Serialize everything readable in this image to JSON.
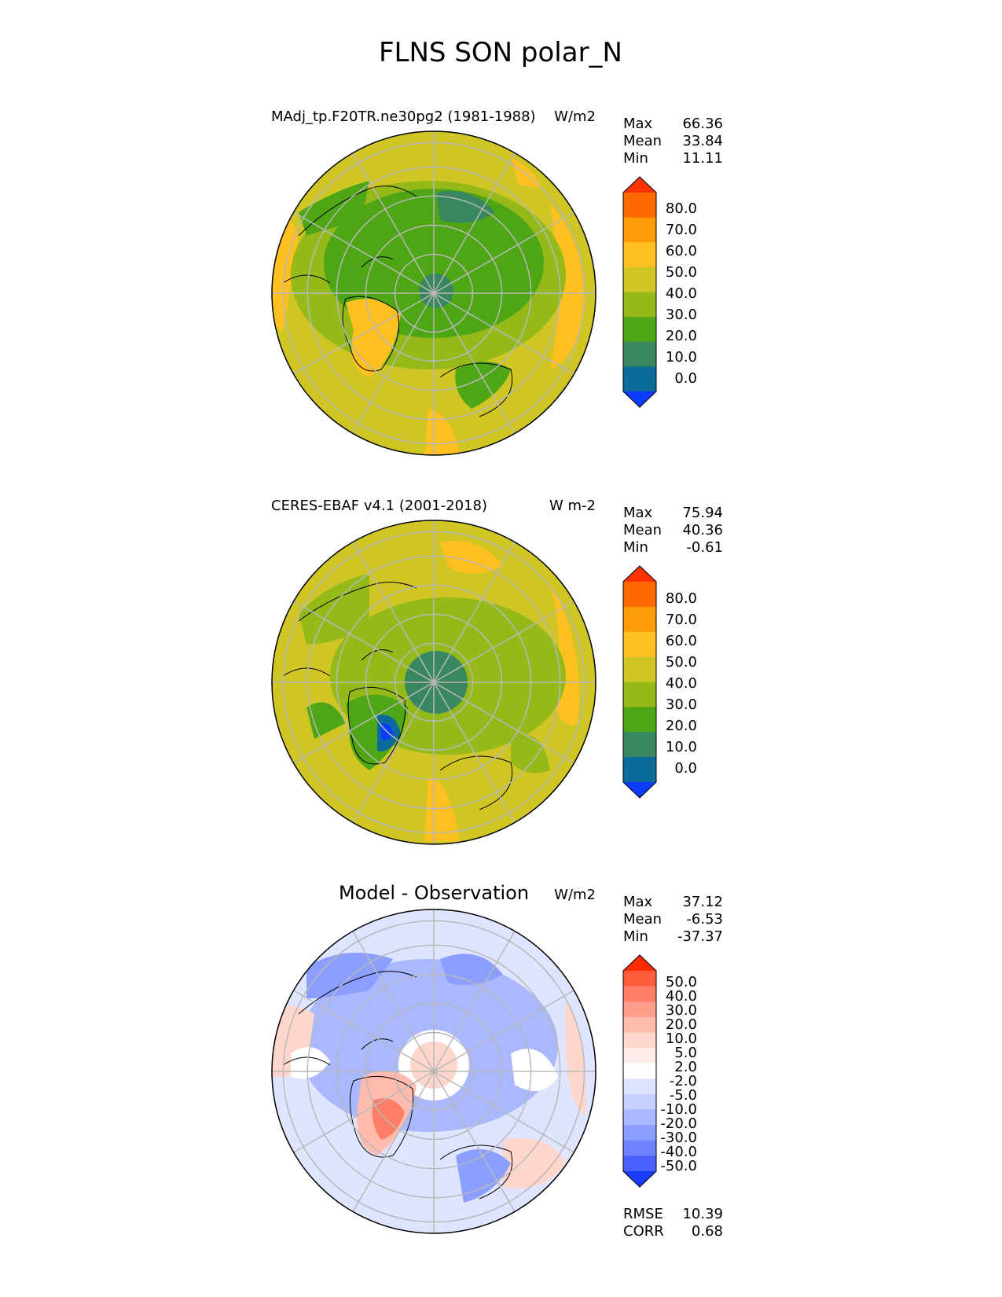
{
  "figure": {
    "title": "FLNS SON polar_N"
  },
  "panels": [
    {
      "id": "model",
      "label": "MAdj_tp.F20TR.ne30pg2 (1981-1988)",
      "units": "W/m2",
      "stats": [
        {
          "name": "Max",
          "value": "66.36"
        },
        {
          "name": "Mean",
          "value": "33.84"
        },
        {
          "name": "Min",
          "value": "11.11"
        }
      ]
    },
    {
      "id": "obs",
      "label": "CERES-EBAF v4.1 (2001-2018)",
      "units": "W m-2",
      "stats": [
        {
          "name": "Max",
          "value": "75.94"
        },
        {
          "name": "Mean",
          "value": "40.36"
        },
        {
          "name": "Min",
          "value": "-0.61"
        }
      ]
    },
    {
      "id": "diff",
      "label": "Model - Observation",
      "units": "W/m2",
      "stats": [
        {
          "name": "Max",
          "value": "37.12"
        },
        {
          "name": "Mean",
          "value": "-6.53"
        },
        {
          "name": "Min",
          "value": "-37.37"
        }
      ],
      "metrics": [
        {
          "name": "RMSE",
          "value": "10.39"
        },
        {
          "name": "CORR",
          "value": "0.68"
        }
      ]
    }
  ],
  "colorbars": {
    "absolute": {
      "labels": [
        "80.0",
        "70.0",
        "60.0",
        "50.0",
        "40.0",
        "30.0",
        "20.0",
        "10.0",
        "0.0"
      ],
      "colors": [
        "#ff3300",
        "#ff6a00",
        "#ff9a0a",
        "#ffc020",
        "#cfc626",
        "#96b91a",
        "#4ea615",
        "#398760",
        "#0b6b9c",
        "#0a3cff"
      ]
    },
    "difference": {
      "labels": [
        "50.0",
        "40.0",
        "30.0",
        "20.0",
        "10.0",
        "5.0",
        "2.0",
        "-2.0",
        "-5.0",
        "-10.0",
        "-20.0",
        "-30.0",
        "-40.0",
        "-50.0"
      ],
      "colors": [
        "#ff2a00",
        "#ff5c3c",
        "#ff7e68",
        "#ff9e8c",
        "#ffbcae",
        "#ffd6cc",
        "#ffecea",
        "#ffffff",
        "#dfe5ff",
        "#c5d0ff",
        "#aab8ff",
        "#8c9eff",
        "#6f82ff",
        "#4b60ff",
        "#1a3cff"
      ]
    }
  },
  "chart_data": [
    {
      "type": "heatmap",
      "projection": "north polar stereographic",
      "title": "MAdj_tp.F20TR.ne30pg2 (1981-1988)",
      "units": "W/m2",
      "levels": [
        0,
        10,
        20,
        30,
        40,
        50,
        60,
        70,
        80
      ],
      "extend": "both",
      "stats": {
        "max": 66.36,
        "mean": 33.84,
        "min": 11.11
      }
    },
    {
      "type": "heatmap",
      "projection": "north polar stereographic",
      "title": "CERES-EBAF v4.1 (2001-2018)",
      "units": "W m-2",
      "levels": [
        0,
        10,
        20,
        30,
        40,
        50,
        60,
        70,
        80
      ],
      "extend": "both",
      "stats": {
        "max": 75.94,
        "mean": 40.36,
        "min": -0.61
      }
    },
    {
      "type": "heatmap",
      "projection": "north polar stereographic",
      "title": "Model - Observation",
      "units": "W/m2",
      "levels": [
        -50,
        -40,
        -30,
        -20,
        -10,
        -5,
        -2,
        2,
        5,
        10,
        20,
        30,
        40,
        50
      ],
      "extend": "both",
      "stats": {
        "max": 37.12,
        "mean": -6.53,
        "min": -37.37,
        "rmse": 10.39,
        "corr": 0.68
      }
    }
  ]
}
